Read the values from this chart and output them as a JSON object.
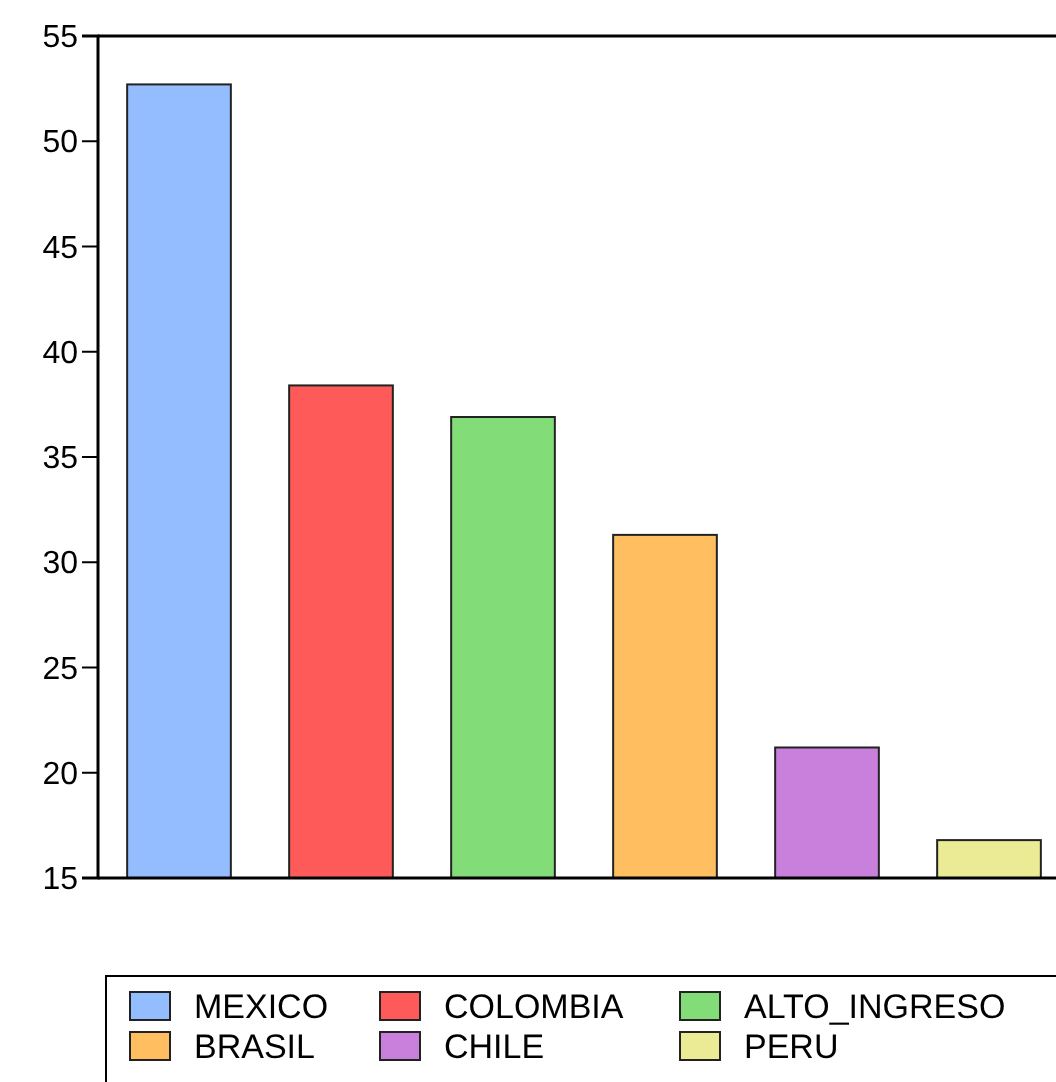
{
  "chart_data": {
    "type": "bar",
    "stacked": true,
    "categories": [
      null,
      null,
      null,
      null,
      null,
      null
    ],
    "series": [
      {
        "name": "MEXICO",
        "color": "#94bdff",
        "values": [
          52.7,
          null,
          null,
          null,
          null,
          null
        ]
      },
      {
        "name": "COLOMBIA",
        "color": "#ff5a5a",
        "values": [
          null,
          38.4,
          null,
          null,
          null,
          null
        ]
      },
      {
        "name": "ALTO_INGRESO",
        "color": "#82dc78",
        "values": [
          null,
          null,
          36.9,
          null,
          null,
          null
        ]
      },
      {
        "name": "BRASIL",
        "color": "#ffbe5f",
        "values": [
          null,
          null,
          null,
          31.3,
          null,
          null
        ]
      },
      {
        "name": "CHILE",
        "color": "#c880dc",
        "values": [
          null,
          null,
          null,
          null,
          21.2,
          null
        ]
      },
      {
        "name": "PERU",
        "color": "#ebeb96",
        "values": [
          null,
          null,
          null,
          null,
          null,
          16.8
        ]
      }
    ],
    "ylim": [
      15,
      55
    ],
    "yticks": [
      15,
      20,
      25,
      30,
      35,
      40,
      45,
      50,
      55
    ],
    "legend": "bottom",
    "grid": false
  }
}
